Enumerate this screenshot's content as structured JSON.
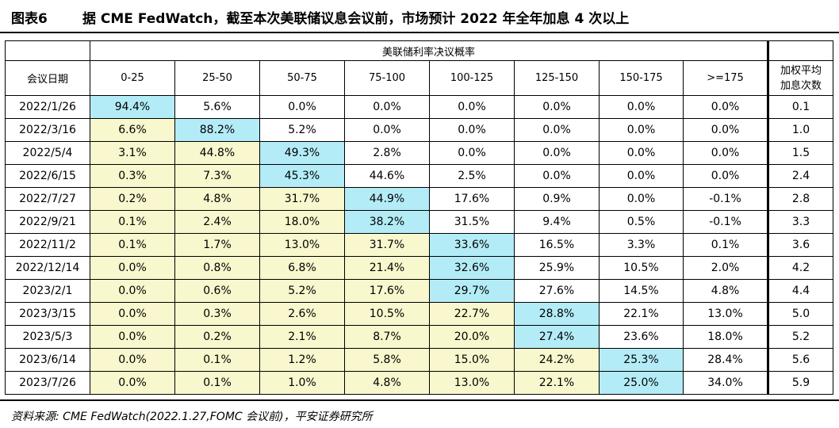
{
  "figure": {
    "label": "图表6",
    "title": "据 CME FedWatch，截至本次美联储议息会议前，市场预计 2022 年全年加息 4 次以上"
  },
  "table": {
    "super_header": "美联储利率决议概率",
    "date_header": "会议日期",
    "avg_header_line1": "加权平均",
    "avg_header_line2": "加息次数",
    "bin_headers": [
      "0-25",
      "25-50",
      "50-75",
      "75-100",
      "100-125",
      "125-150",
      "150-175",
      ">=175"
    ],
    "rows": [
      {
        "date": "2022/1/26",
        "values": [
          "94.4%",
          "5.6%",
          "0.0%",
          "0.0%",
          "0.0%",
          "0.0%",
          "0.0%",
          "0.0%"
        ],
        "avg": "0.1",
        "peak": 0
      },
      {
        "date": "2022/3/16",
        "values": [
          "6.6%",
          "88.2%",
          "5.2%",
          "0.0%",
          "0.0%",
          "0.0%",
          "0.0%",
          "0.0%"
        ],
        "avg": "1.0",
        "peak": 1
      },
      {
        "date": "2022/5/4",
        "values": [
          "3.1%",
          "44.8%",
          "49.3%",
          "2.8%",
          "0.0%",
          "0.0%",
          "0.0%",
          "0.0%"
        ],
        "avg": "1.5",
        "peak": 2
      },
      {
        "date": "2022/6/15",
        "values": [
          "0.3%",
          "7.3%",
          "45.3%",
          "44.6%",
          "2.5%",
          "0.0%",
          "0.0%",
          "0.0%"
        ],
        "avg": "2.4",
        "peak": 2
      },
      {
        "date": "2022/7/27",
        "values": [
          "0.2%",
          "4.8%",
          "31.7%",
          "44.9%",
          "17.6%",
          "0.9%",
          "0.0%",
          "-0.1%"
        ],
        "avg": "2.8",
        "peak": 3
      },
      {
        "date": "2022/9/21",
        "values": [
          "0.1%",
          "2.4%",
          "18.0%",
          "38.2%",
          "31.5%",
          "9.4%",
          "0.5%",
          "-0.1%"
        ],
        "avg": "3.3",
        "peak": 3
      },
      {
        "date": "2022/11/2",
        "values": [
          "0.1%",
          "1.7%",
          "13.0%",
          "31.7%",
          "33.6%",
          "16.5%",
          "3.3%",
          "0.1%"
        ],
        "avg": "3.6",
        "peak": 4
      },
      {
        "date": "2022/12/14",
        "values": [
          "0.0%",
          "0.8%",
          "6.8%",
          "21.4%",
          "32.6%",
          "25.9%",
          "10.5%",
          "2.0%"
        ],
        "avg": "4.2",
        "peak": 4
      },
      {
        "date": "2023/2/1",
        "values": [
          "0.0%",
          "0.6%",
          "5.2%",
          "17.6%",
          "29.7%",
          "27.6%",
          "14.5%",
          "4.8%"
        ],
        "avg": "4.4",
        "peak": 4
      },
      {
        "date": "2023/3/15",
        "values": [
          "0.0%",
          "0.3%",
          "2.6%",
          "10.5%",
          "22.7%",
          "28.8%",
          "22.1%",
          "13.0%"
        ],
        "avg": "5.0",
        "peak": 5
      },
      {
        "date": "2023/5/3",
        "values": [
          "0.0%",
          "0.2%",
          "2.1%",
          "8.7%",
          "20.0%",
          "27.4%",
          "23.6%",
          "18.0%"
        ],
        "avg": "5.2",
        "peak": 5
      },
      {
        "date": "2023/6/14",
        "values": [
          "0.0%",
          "0.1%",
          "1.2%",
          "5.8%",
          "15.0%",
          "24.2%",
          "25.3%",
          "28.4%"
        ],
        "avg": "5.6",
        "peak": 6
      },
      {
        "date": "2023/7/26",
        "values": [
          "0.0%",
          "0.1%",
          "1.0%",
          "4.8%",
          "13.0%",
          "22.1%",
          "25.0%",
          "34.0%"
        ],
        "avg": "5.9",
        "peak": 6
      }
    ]
  },
  "colors": {
    "peak_highlight": "#b3ecf7",
    "lower_highlight": "#f8f7cd"
  },
  "source": "资料来源: CME FedWatch(2022.1.27,FOMC 会议前)，平安证券研究所"
}
